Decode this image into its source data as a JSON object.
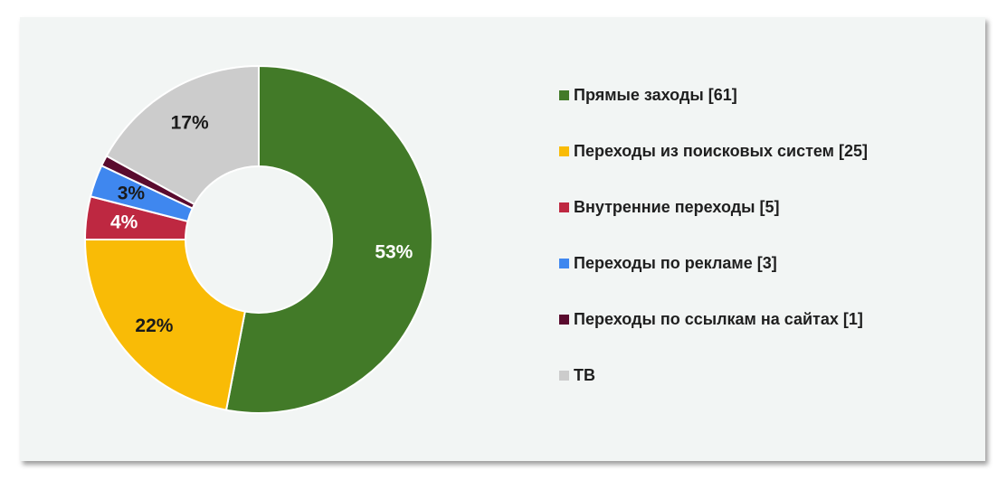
{
  "chart_data": {
    "type": "pie",
    "donut": true,
    "legend_position": "right",
    "slices": [
      {
        "label": "Прямые заходы [61]",
        "value": 53,
        "value_label": "53%",
        "color": "#427a28",
        "label_color": "#ffffff"
      },
      {
        "label": "Переходы из поисковых систем [25]",
        "value": 22,
        "value_label": "22%",
        "color": "#f9bb06",
        "label_color": "#1a1a1a"
      },
      {
        "label": "Внутренние переходы [5]",
        "value": 4,
        "value_label": "4%",
        "color": "#be2841",
        "label_color": "#ffffff"
      },
      {
        "label": "Переходы по рекламе [3]",
        "value": 3,
        "value_label": "3%",
        "color": "#3f87ef",
        "label_color": "#1a1a1a"
      },
      {
        "label": "Переходы по ссылкам на сайтах [1]",
        "value": 1,
        "value_label": "",
        "color": "#5a0b2e",
        "label_color": "#ffffff"
      },
      {
        "label": "ТВ",
        "value": 17,
        "value_label": "17%",
        "color": "#cccccc",
        "label_color": "#1a1a1a"
      }
    ]
  }
}
